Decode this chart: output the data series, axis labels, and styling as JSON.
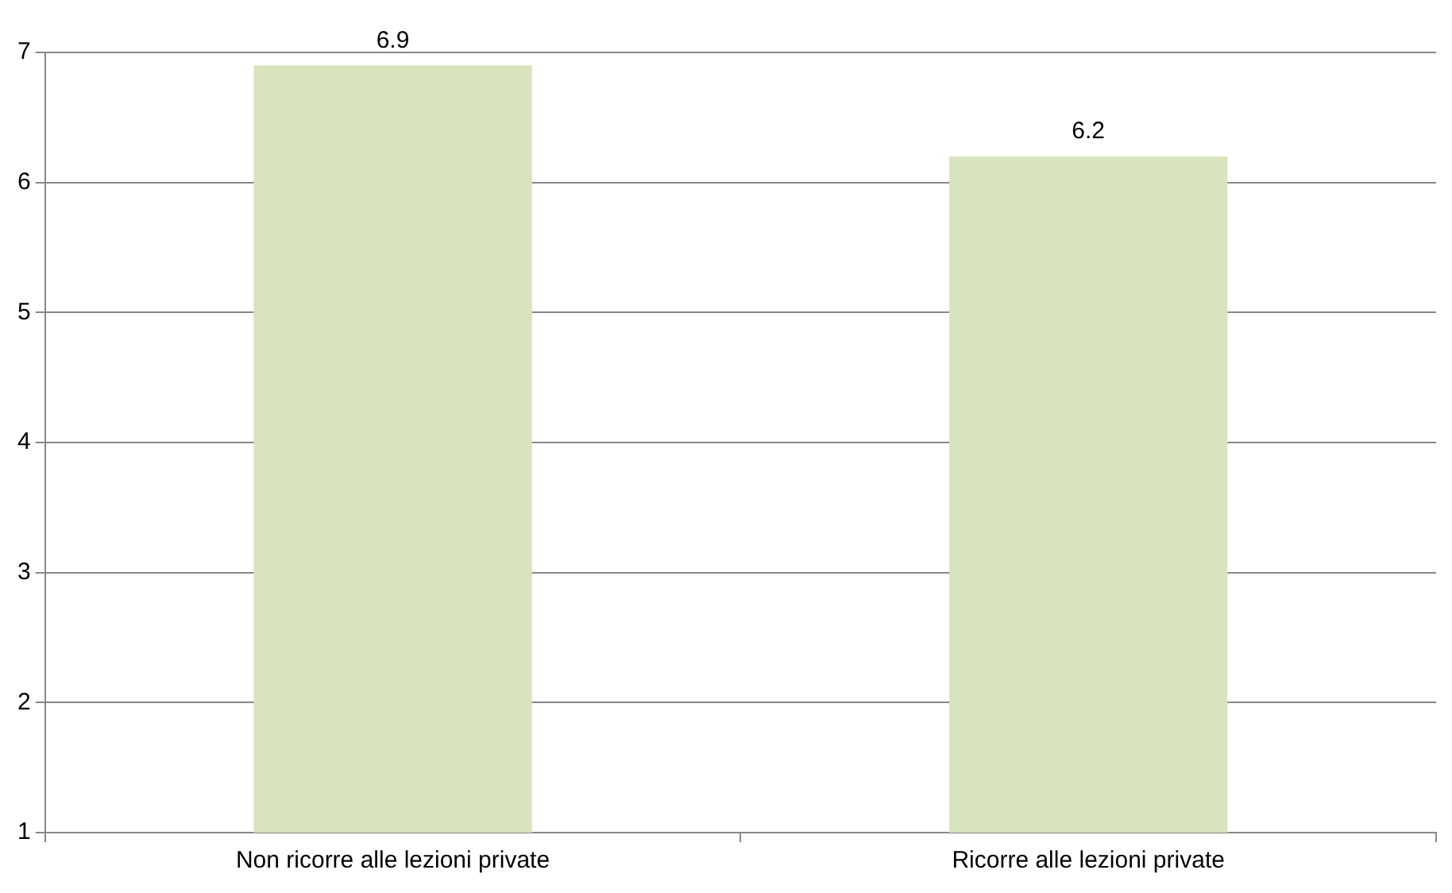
{
  "chart_data": {
    "type": "bar",
    "categories": [
      "Non ricorre alle lezioni private",
      "Ricorre alle lezioni private"
    ],
    "values": [
      6.9,
      6.2
    ],
    "color": "#d7e4bd",
    "ylim": [
      1,
      7
    ],
    "yticks": [
      1,
      2,
      3,
      4,
      5,
      6,
      7
    ],
    "grid": "y",
    "data_labels": true
  }
}
